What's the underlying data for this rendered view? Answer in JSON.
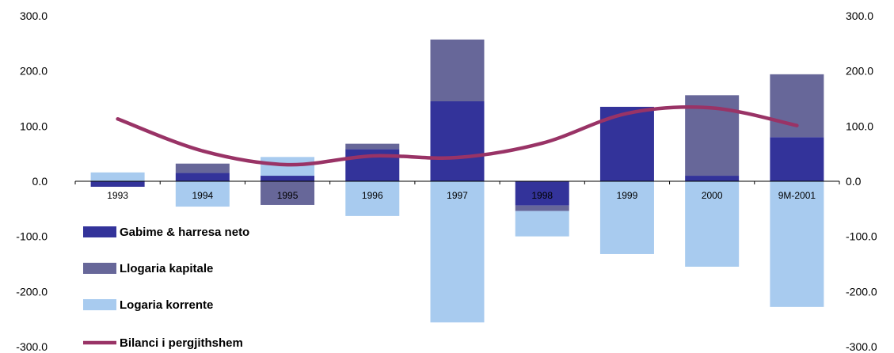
{
  "chart_data": {
    "type": "bar",
    "stacked": true,
    "categories": [
      "1993",
      "1994",
      "1995",
      "1996",
      "1997",
      "1998",
      "1999",
      "2000",
      "9M-2001"
    ],
    "series": [
      {
        "name": "Gabime & harresa neto",
        "kind": "bar",
        "color": "#33339A",
        "values": [
          -10,
          15,
          10,
          58,
          145,
          -44,
          135,
          10,
          80
        ]
      },
      {
        "name": "Llogaria kapitale",
        "kind": "bar",
        "color": "#676799",
        "values": [
          0,
          17,
          -43,
          10,
          112,
          -10,
          0,
          146,
          114
        ]
      },
      {
        "name": "Logaria korrente",
        "kind": "bar",
        "color": "#A8CBEF",
        "values": [
          16,
          -46,
          34,
          -63,
          -256,
          -46,
          -132,
          -155,
          -228
        ]
      },
      {
        "name": "Bilanci i pergjithshem",
        "kind": "line",
        "color": "#993366",
        "values": [
          113,
          55,
          30,
          46,
          43,
          69,
          123,
          133,
          101
        ]
      }
    ],
    "ylim": [
      -300,
      300
    ],
    "yticks": [
      "-300.0",
      "-200.0",
      "-100.0",
      "0.0",
      "100.0",
      "200.0",
      "300.0"
    ],
    "secondary_yticks": [
      "-300.0",
      "-200.0",
      "-100.0",
      "0.0",
      "100.0",
      "200.0",
      "300.0"
    ],
    "legend_position": "bottom-left",
    "grid": false,
    "title": "",
    "xlabel": "",
    "ylabel": ""
  }
}
